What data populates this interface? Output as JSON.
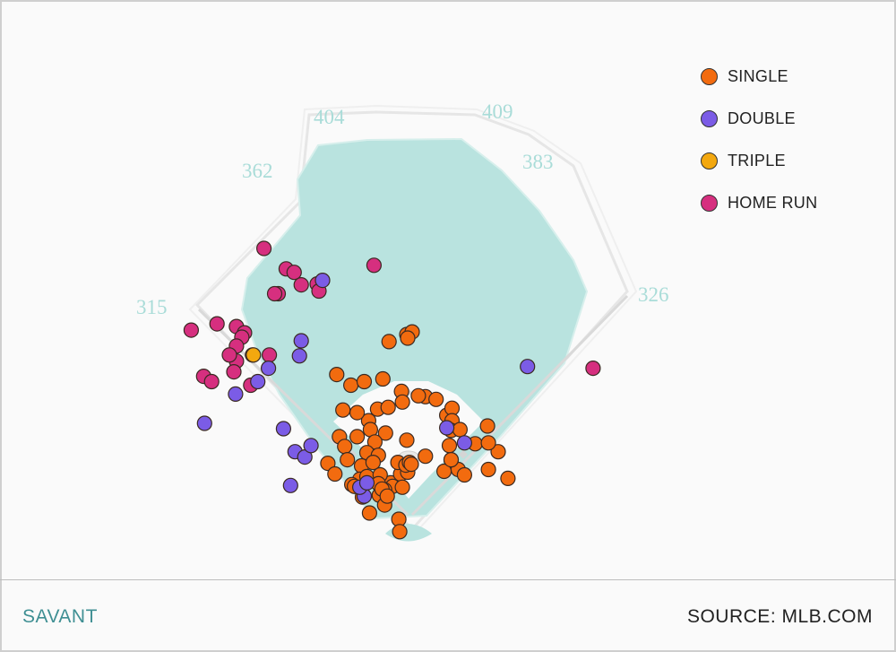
{
  "brand": "SAVANT",
  "source": "SOURCE: MLB.COM",
  "colors": {
    "single": "#f26b0f",
    "double": "#7b5ce6",
    "triple": "#f3a80f",
    "home_run": "#d62f7f",
    "field": "#b9e3df",
    "distance_text": "#a9dcd8"
  },
  "chart_data": {
    "type": "scatter",
    "title": "",
    "legend_position": "top-right",
    "fence_distances": [
      {
        "label": "315"
      },
      {
        "label": "362"
      },
      {
        "label": "404"
      },
      {
        "label": "409"
      },
      {
        "label": "383"
      },
      {
        "label": "326"
      }
    ],
    "series": [
      {
        "name": "SINGLE",
        "color": "#f26b0f",
        "points": [
          [
            -22,
            195
          ],
          [
            -2,
            203
          ],
          [
            4,
            206
          ],
          [
            -1,
            199
          ],
          [
            -81,
            158
          ],
          [
            -65,
            146
          ],
          [
            -50,
            150
          ],
          [
            -8,
            139
          ],
          [
            -45,
            106
          ],
          [
            -29,
            153
          ],
          [
            -74,
            118
          ],
          [
            -58,
            115
          ],
          [
            -35,
            119
          ],
          [
            -43,
            96
          ],
          [
            -58,
            88
          ],
          [
            -26,
            92
          ],
          [
            -38,
            82
          ],
          [
            -78,
            88
          ],
          [
            -72,
            77
          ],
          [
            -23,
            121
          ],
          [
            -7,
            127
          ],
          [
            -47,
            70
          ],
          [
            -69,
            62
          ],
          [
            -53,
            55
          ],
          [
            -91,
            58
          ],
          [
            -83,
            46
          ],
          [
            -34,
            67
          ],
          [
            -55,
            40
          ],
          [
            -32,
            39
          ],
          [
            -20,
            36
          ],
          [
            -18,
            32
          ],
          [
            -9,
            46
          ],
          [
            -1,
            48
          ],
          [
            -12,
            59
          ],
          [
            -27,
            28
          ],
          [
            -40,
            59
          ],
          [
            -47,
            43
          ],
          [
            -32,
            45
          ],
          [
            -34,
            35
          ],
          [
            -64,
            34
          ],
          [
            -61,
            32
          ],
          [
            -52,
            20
          ],
          [
            -33,
            22
          ],
          [
            -27,
            11
          ],
          [
            -44,
            2
          ],
          [
            -11,
            -5
          ],
          [
            -10,
            -19
          ],
          [
            -30,
            29
          ],
          [
            -7,
            31
          ],
          [
            -3,
            56
          ],
          [
            1,
            59
          ],
          [
            3,
            57
          ],
          [
            -24,
            21
          ],
          [
            19,
            133
          ],
          [
            31,
            130
          ],
          [
            43,
            112
          ],
          [
            49,
            120
          ],
          [
            75,
            80
          ],
          [
            101,
            71
          ],
          [
            112,
            41
          ],
          [
            90,
            51
          ],
          [
            11,
            134
          ],
          [
            49,
            106
          ],
          [
            48,
            95
          ],
          [
            56,
            51
          ],
          [
            58,
            96
          ],
          [
            48,
            62
          ],
          [
            46,
            78
          ],
          [
            89,
            100
          ],
          [
            90,
            81
          ],
          [
            40,
            49
          ],
          [
            63,
            45
          ],
          [
            48,
            62
          ],
          [
            19,
            66
          ],
          [
            -2,
            84
          ]
        ]
      },
      {
        "name": "DOUBLE",
        "color": "#7b5ce6",
        "points": [
          [
            -97,
            264
          ],
          [
            -121,
            196
          ],
          [
            -123,
            179
          ],
          [
            -230,
            103
          ],
          [
            -195,
            136
          ],
          [
            -170,
            150
          ],
          [
            -158,
            165
          ],
          [
            -141,
            97
          ],
          [
            -128,
            71
          ],
          [
            -50,
            21
          ],
          [
            -55,
            31
          ],
          [
            -117,
            65
          ],
          [
            -110,
            78
          ],
          [
            -133,
            33
          ],
          [
            63,
            81
          ],
          [
            43,
            98
          ],
          [
            134,
            167
          ],
          [
            -47,
            36
          ]
        ]
      },
      {
        "name": "TRIPLE",
        "color": "#f3a80f",
        "points": [
          [
            -175,
            180
          ]
        ]
      },
      {
        "name": "HOME RUN",
        "color": "#d62f7f",
        "points": [
          [
            -39,
            281
          ],
          [
            -163,
            300
          ],
          [
            -138,
            277
          ],
          [
            -129,
            273
          ],
          [
            -121,
            259
          ],
          [
            -103,
            260
          ],
          [
            -101,
            252
          ],
          [
            -147,
            249
          ],
          [
            -151,
            249
          ],
          [
            -245,
            208
          ],
          [
            -216,
            215
          ],
          [
            -194,
            212
          ],
          [
            -185,
            205
          ],
          [
            -188,
            200
          ],
          [
            -194,
            190
          ],
          [
            -176,
            180
          ],
          [
            -194,
            173
          ],
          [
            -157,
            180
          ],
          [
            -202,
            180
          ],
          [
            208,
            165
          ],
          [
            -231,
            156
          ],
          [
            -222,
            150
          ],
          [
            -197,
            161
          ],
          [
            -178,
            146
          ]
        ]
      }
    ]
  }
}
